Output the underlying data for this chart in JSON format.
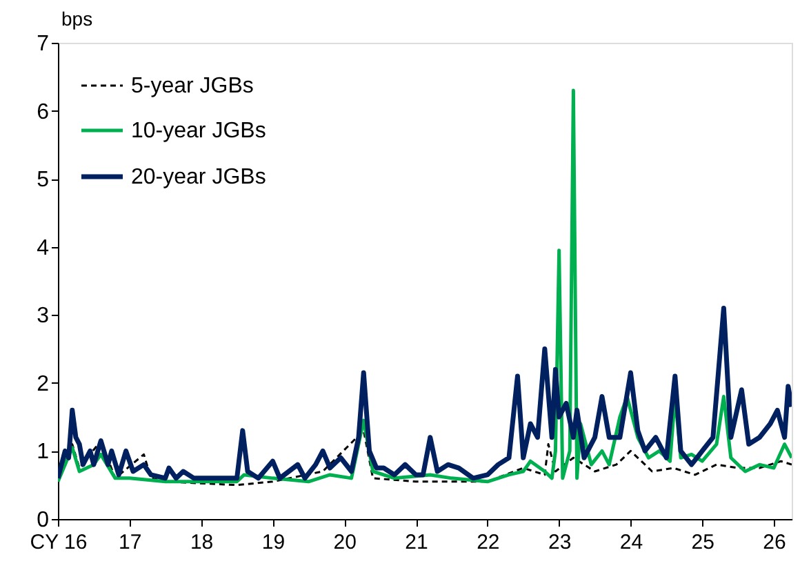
{
  "chart_data": {
    "type": "line",
    "ylabel": "bps",
    "xlim": [
      16,
      26.25
    ],
    "ylim": [
      0,
      7
    ],
    "xticks": [
      {
        "value": 16,
        "label": "CY 16"
      },
      17,
      18,
      19,
      20,
      21,
      22,
      23,
      24,
      25,
      26
    ],
    "yticks": [
      0,
      1,
      2,
      3,
      4,
      5,
      6,
      7
    ],
    "grid": false,
    "legend": "top left",
    "marker": "none",
    "series": [
      {
        "name": "5-year JGBs",
        "color": "#000000",
        "line_style": "dashed",
        "x": [
          16.0,
          16.2,
          16.3,
          16.6,
          16.8,
          17.2,
          17.3,
          17.5,
          18.5,
          19.0,
          19.7,
          20.27,
          20.4,
          21.0,
          22.0,
          22.5,
          22.8,
          22.85,
          22.95,
          23.2,
          23.5,
          23.8,
          24.0,
          24.3,
          24.6,
          24.9,
          25.2,
          25.5,
          25.8,
          26.1,
          26.25
        ],
        "values": [
          0.55,
          1.1,
          0.75,
          1.15,
          0.6,
          0.95,
          0.6,
          0.55,
          0.5,
          0.55,
          0.7,
          1.3,
          0.6,
          0.55,
          0.55,
          0.75,
          0.65,
          1.1,
          0.7,
          0.9,
          0.7,
          0.8,
          1.0,
          0.7,
          0.75,
          0.65,
          0.8,
          0.75,
          0.75,
          0.85,
          0.8
        ]
      },
      {
        "name": "10-year JGBs",
        "color": "#00b050",
        "line_style": "solid",
        "x": [
          16.0,
          16.2,
          16.3,
          16.5,
          16.6,
          16.8,
          17.0,
          17.5,
          18.0,
          18.5,
          18.6,
          19.0,
          19.5,
          19.8,
          20.1,
          20.27,
          20.4,
          20.7,
          21.2,
          21.5,
          22.0,
          22.3,
          22.5,
          22.6,
          22.8,
          22.9,
          22.95,
          23.0,
          23.05,
          23.15,
          23.2,
          23.25,
          23.3,
          23.45,
          23.6,
          23.7,
          23.85,
          23.95,
          24.1,
          24.25,
          24.4,
          24.55,
          24.62,
          24.7,
          24.85,
          25.0,
          25.2,
          25.3,
          25.4,
          25.6,
          25.8,
          26.0,
          26.15,
          26.25
        ],
        "values": [
          0.55,
          1.05,
          0.7,
          0.8,
          0.95,
          0.6,
          0.6,
          0.55,
          0.55,
          0.55,
          0.65,
          0.6,
          0.55,
          0.65,
          0.6,
          1.45,
          0.7,
          0.6,
          0.65,
          0.6,
          0.55,
          0.65,
          0.7,
          0.85,
          0.7,
          0.6,
          1.0,
          3.95,
          0.6,
          1.0,
          6.3,
          0.6,
          1.4,
          0.8,
          1.0,
          0.8,
          1.5,
          1.8,
          1.2,
          0.9,
          1.0,
          0.85,
          1.8,
          0.9,
          0.95,
          0.85,
          1.1,
          1.8,
          0.9,
          0.7,
          0.8,
          0.75,
          1.1,
          0.9
        ]
      },
      {
        "name": "20-year JGBs",
        "color": "#002060",
        "line_style": "solid",
        "x": [
          16.0,
          16.1,
          16.15,
          16.2,
          16.25,
          16.3,
          16.35,
          16.45,
          16.5,
          16.6,
          16.7,
          16.75,
          16.85,
          16.95,
          17.05,
          17.2,
          17.3,
          17.5,
          17.55,
          17.65,
          17.75,
          17.9,
          18.0,
          18.3,
          18.5,
          18.58,
          18.65,
          18.8,
          19.0,
          19.1,
          19.35,
          19.45,
          19.6,
          19.7,
          19.8,
          19.95,
          20.1,
          20.2,
          20.27,
          20.35,
          20.45,
          20.55,
          20.7,
          20.85,
          21.0,
          21.1,
          21.2,
          21.3,
          21.45,
          21.6,
          21.8,
          22.0,
          22.15,
          22.3,
          22.42,
          22.5,
          22.6,
          22.7,
          22.8,
          22.9,
          22.95,
          23.0,
          23.1,
          23.2,
          23.25,
          23.35,
          23.5,
          23.6,
          23.7,
          23.85,
          24.0,
          24.1,
          24.2,
          24.35,
          24.5,
          24.62,
          24.7,
          24.85,
          25.0,
          25.15,
          25.3,
          25.4,
          25.55,
          25.65,
          25.8,
          25.95,
          26.05,
          26.15,
          26.2,
          26.25
        ],
        "values": [
          0.6,
          1.0,
          0.9,
          1.6,
          1.2,
          1.1,
          0.8,
          1.0,
          0.8,
          1.15,
          0.8,
          1.0,
          0.65,
          1.0,
          0.7,
          0.8,
          0.65,
          0.6,
          0.75,
          0.6,
          0.7,
          0.6,
          0.6,
          0.6,
          0.6,
          1.3,
          0.7,
          0.6,
          0.85,
          0.6,
          0.8,
          0.6,
          0.8,
          1.0,
          0.75,
          0.9,
          0.7,
          1.2,
          2.15,
          1.0,
          0.75,
          0.75,
          0.65,
          0.8,
          0.65,
          0.65,
          1.2,
          0.7,
          0.8,
          0.75,
          0.6,
          0.65,
          0.8,
          0.9,
          2.1,
          0.9,
          1.4,
          1.2,
          2.5,
          1.2,
          2.2,
          1.5,
          1.7,
          1.2,
          1.6,
          0.9,
          1.2,
          1.8,
          1.2,
          1.2,
          2.15,
          1.3,
          1.0,
          1.2,
          0.9,
          2.1,
          1.0,
          0.8,
          1.0,
          1.2,
          3.1,
          1.2,
          1.9,
          1.1,
          1.2,
          1.4,
          1.6,
          1.2,
          1.95,
          1.65
        ]
      }
    ]
  }
}
